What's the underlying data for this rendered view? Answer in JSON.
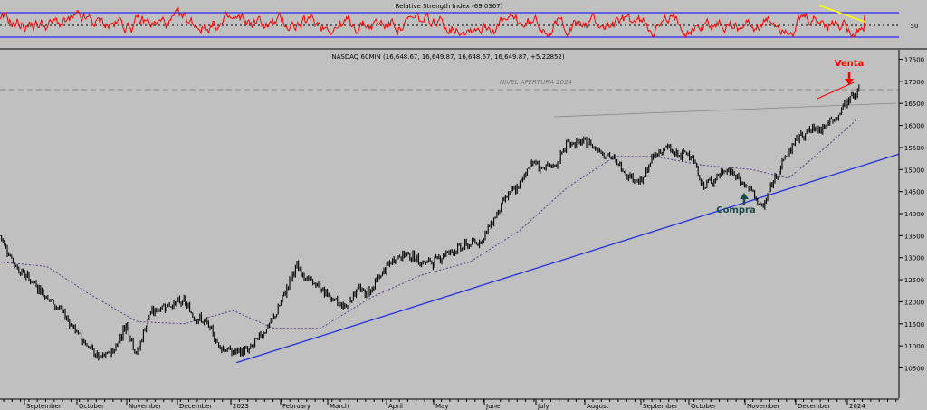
{
  "rsi_panel": {
    "title": "Relative Strength Index (69.0367)",
    "level_label": "50",
    "upper_level": 70,
    "lower_level": 30,
    "mid_level": 50
  },
  "price_panel": {
    "title": "NASDAQ 60MIN (16,648.67, 16,649.87, 16,648.67, 16,649.87, +5.22852)",
    "annotation_nivel": "NIVEL APERTURA 2024",
    "annotation_venta": "Venta",
    "annotation_compra": "Compra"
  },
  "colors": {
    "background": "#c0c0c0",
    "rsi_line": "#ff0000",
    "rsi_bands": "#0000ff",
    "price_bars": "#000000",
    "moving_average": "#5a3a8a",
    "trendline": "#2233dd",
    "rsi_trendline": "#ffff00",
    "venta": "#ff0000",
    "compra": "#1a4a4a"
  },
  "chart_data": [
    {
      "type": "line",
      "name": "rsi",
      "title": "Relative Strength Index (69.0367)",
      "ylim": [
        0,
        100
      ],
      "levels": [
        30,
        50,
        70
      ],
      "last_value": 69.0367,
      "y_tick_labels": [
        "50"
      ]
    },
    {
      "type": "line",
      "name": "nasdaq_60min",
      "title": "NASDAQ 60MIN (16,648.67, 16,649.87, 16,648.67, 16,649.87, +5.22852)",
      "ylim": [
        10300,
        17700
      ],
      "y_ticks": [
        10500,
        11000,
        11500,
        12000,
        12500,
        13000,
        13500,
        14000,
        14500,
        15000,
        15500,
        16000,
        16500,
        17000,
        17500
      ],
      "x_tick_labels": [
        "September",
        "October",
        "November",
        "December",
        "2023",
        "February",
        "March",
        "April",
        "May",
        "June",
        "July",
        "August",
        "September",
        "October",
        "November",
        "December",
        "2024"
      ],
      "grid": false,
      "series": [
        {
          "name": "price",
          "x": [
            "2022-08-17",
            "2022-08-26",
            "2022-09-06",
            "2022-09-13",
            "2022-09-21",
            "2022-09-30",
            "2022-10-06",
            "2022-10-13",
            "2022-10-21",
            "2022-10-28",
            "2022-11-03",
            "2022-11-10",
            "2022-11-18",
            "2022-11-30",
            "2022-12-05",
            "2022-12-13",
            "2022-12-20",
            "2022-12-28",
            "2023-01-06",
            "2023-01-12",
            "2023-01-20",
            "2023-02-02",
            "2023-02-09",
            "2023-02-16",
            "2023-02-24",
            "2023-03-02",
            "2023-03-09",
            "2023-03-13",
            "2023-03-17",
            "2023-03-24",
            "2023-03-31",
            "2023-04-06",
            "2023-04-14",
            "2023-04-21",
            "2023-04-28",
            "2023-05-05",
            "2023-05-12",
            "2023-05-19",
            "2023-05-26",
            "2023-06-02",
            "2023-06-09",
            "2023-06-16",
            "2023-06-23",
            "2023-06-30",
            "2023-07-07",
            "2023-07-19",
            "2023-07-27",
            "2023-08-03",
            "2023-08-10",
            "2023-08-18",
            "2023-08-25",
            "2023-09-01",
            "2023-09-08",
            "2023-09-15",
            "2023-09-22",
            "2023-09-29",
            "2023-10-06",
            "2023-10-12",
            "2023-10-20",
            "2023-10-26",
            "2023-11-03",
            "2023-11-10",
            "2023-11-17",
            "2023-11-24",
            "2023-12-01",
            "2023-12-08",
            "2023-12-14",
            "2023-12-21",
            "2023-12-28",
            "2024-01-04",
            "2024-01-08"
          ],
          "values": [
            13500,
            12800,
            12400,
            12100,
            11800,
            11300,
            11000,
            10700,
            10900,
            11500,
            10800,
            11700,
            11900,
            12000,
            11700,
            11500,
            11000,
            10850,
            10900,
            11200,
            11600,
            12800,
            12500,
            12300,
            12000,
            11900,
            12300,
            12200,
            12300,
            12700,
            13000,
            13100,
            12900,
            12900,
            13100,
            13200,
            13300,
            13400,
            13900,
            14400,
            14600,
            15200,
            15000,
            15100,
            15600,
            15600,
            15400,
            15200,
            14900,
            14700,
            15300,
            15500,
            15300,
            15400,
            14600,
            14800,
            15000,
            14800,
            14500,
            14100,
            14900,
            15400,
            15800,
            15900,
            16000,
            16200,
            16600,
            16800,
            17000,
            16400,
            16650
          ]
        },
        {
          "name": "moving_average",
          "x": [
            "2022-08-17",
            "2022-09-13",
            "2022-10-06",
            "2022-11-03",
            "2022-11-30",
            "2022-12-28",
            "2023-01-20",
            "2023-02-16",
            "2023-03-17",
            "2023-04-14",
            "2023-05-12",
            "2023-06-09",
            "2023-07-07",
            "2023-08-03",
            "2023-08-25",
            "2023-09-22",
            "2023-10-20",
            "2023-11-10",
            "2023-12-01",
            "2023-12-21",
            "2024-01-08"
          ],
          "values": [
            12900,
            12800,
            12200,
            11550,
            11500,
            11800,
            11400,
            11400,
            12100,
            12600,
            12900,
            13600,
            14600,
            15300,
            15300,
            15100,
            15000,
            14800,
            15500,
            16200,
            16400
          ]
        },
        {
          "name": "trendline",
          "x": [
            "2022-12-30",
            "2024-01-12"
          ],
          "values": [
            10620,
            15350
          ]
        }
      ]
    }
  ]
}
